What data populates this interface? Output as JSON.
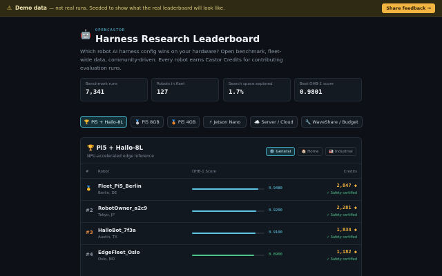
{
  "banner": {
    "icon": "warning-icon",
    "bold": "Demo data",
    "message": "— not real runs. Seeded to show what the real leaderboard will look like.",
    "feedback_button": "Share feedback →"
  },
  "header": {
    "logo": "🤖",
    "eyebrow": "OPENCASTOR",
    "title": "Harness Research Leaderboard",
    "subtitle": "Which robot AI harness config wins on your hardware? Open benchmark, fleet-wide data, community-driven. Every robot earns Castor Credits for contributing evaluation runs."
  },
  "stats": [
    {
      "label": "Benchmark runs",
      "value": "7,341"
    },
    {
      "label": "Robots in fleet",
      "value": "127"
    },
    {
      "label": "Search space explored",
      "value": "1.7%"
    },
    {
      "label": "Best OHB-1 score",
      "value": "0.9801"
    }
  ],
  "tabs": [
    {
      "label": "🏆 Pi5 + Hailo-8L",
      "active": true
    },
    {
      "label": "🥈 Pi5 8GB"
    },
    {
      "label": "🥉 Pi5 4GB"
    },
    {
      "label": "⚡ Jetson Nano"
    },
    {
      "label": "☁️ Server / Cloud"
    },
    {
      "label": "🔧 WaveShare / Budget"
    }
  ],
  "panel": {
    "title": "🏆 Pi5 + Hailo-8L",
    "subtitle": "NPU-accelerated edge inference",
    "segments": [
      "⚙️ General",
      "🏠 Home",
      "🏭 Industrial"
    ],
    "columns": {
      "rank": "#",
      "robot": "Robot",
      "score": "OHB-1 Score",
      "credits": "Credits"
    },
    "rows": [
      {
        "rank": "🥇",
        "name": "Fleet_Pi5_Berlin",
        "location": "Berlin, DE",
        "score": 0.948,
        "score_text": "0.9480",
        "credits": "2,847 ◆",
        "cert": "✓ Safety certified",
        "bar_color": "#5cc8e6",
        "rank_color": "#f2b541"
      },
      {
        "rank": "#2",
        "name": "RobotOwner_a2c9",
        "location": "Tokyo, JP",
        "score": 0.92,
        "score_text": "0.9200",
        "credits": "2,281 ◆",
        "cert": "✓ Safety certified",
        "bar_color": "#5cc8e6",
        "rank_color": "#8c98a6"
      },
      {
        "rank": "#3",
        "name": "HalloBot_7f3a",
        "location": "Austin, TX",
        "score": 0.91,
        "score_text": "0.9100",
        "credits": "1,834 ◆",
        "cert": "✓ Safety certified",
        "bar_color": "#5cc8e6",
        "rank_color": "#e0873d"
      },
      {
        "rank": "#4",
        "name": "EdgeFleet_Oslo",
        "location": "Oslo, NO",
        "score": 0.89,
        "score_text": "0.8900",
        "credits": "1,182 ◆",
        "cert": "✓ Safety certified",
        "bar_color": "#4cc38a",
        "rank_color": "#8c98a6"
      }
    ]
  }
}
